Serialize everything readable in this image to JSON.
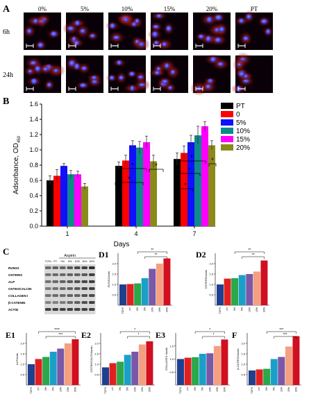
{
  "panel_a": {
    "letter": "A",
    "columns": [
      "0%",
      "5%",
      "10%",
      "15%",
      "20%",
      "PT"
    ],
    "rows": [
      "6h",
      "24h"
    ]
  },
  "chart_data": [
    {
      "id": "B",
      "type": "bar",
      "letter": "B",
      "categories": [
        "1",
        "4",
        "7"
      ],
      "xlabel": "Days",
      "ylabel": "Adsorbance, OD",
      "ylabel_sub": "450",
      "ylim": [
        0,
        1.6
      ],
      "yticks": [
        "0.0",
        "0.2",
        "0.4",
        "0.6",
        "0.8",
        "1.0",
        "1.2",
        "1.4",
        "1.6"
      ],
      "legend_position": "top-right",
      "grid": false,
      "sig_mark": "*",
      "series": [
        {
          "name": "PT",
          "color": "#000000",
          "values": [
            0.6,
            0.79,
            0.88
          ],
          "errors": [
            0.06,
            0.05,
            0.08
          ]
        },
        {
          "name": "0",
          "color": "#ff0000",
          "values": [
            0.66,
            0.86,
            0.96
          ],
          "errors": [
            0.08,
            0.07,
            0.09
          ]
        },
        {
          "name": "5%",
          "color": "#1010ff",
          "values": [
            0.79,
            1.06,
            1.1
          ],
          "errors": [
            0.03,
            0.06,
            0.09
          ]
        },
        {
          "name": "10%",
          "color": "#0e8a8a",
          "values": [
            0.68,
            1.03,
            1.19
          ],
          "errors": [
            0.05,
            0.08,
            0.12
          ]
        },
        {
          "name": "15%",
          "color": "#ff00ff",
          "values": [
            0.68,
            1.1,
            1.31
          ],
          "errors": [
            0.04,
            0.08,
            0.06
          ]
        },
        {
          "name": "20%",
          "color": "#8a8a1a",
          "values": [
            0.52,
            0.85,
            1.06
          ],
          "errors": [
            0.04,
            0.08,
            0.06
          ]
        }
      ]
    },
    {
      "id": "D1",
      "type": "bar",
      "letter": "D1",
      "ylabel": "RUNX2/actin",
      "categories": [
        "TCPS",
        "PT",
        "0%",
        "5%",
        "10%",
        "15%",
        "20%"
      ],
      "values": [
        1.0,
        1.02,
        1.05,
        1.3,
        1.75,
        2.0,
        2.25
      ],
      "ylim": [
        0,
        2.5
      ],
      "yticks": [
        "0.5",
        "1.0",
        "1.5",
        "2.0"
      ],
      "brackets": [
        {
          "label": "**",
          "from": 2,
          "to": 6
        },
        {
          "label": "**",
          "from": 3,
          "to": 6
        }
      ]
    },
    {
      "id": "D2",
      "type": "bar",
      "letter": "D2",
      "ylabel": "OSTERIX/actin",
      "categories": [
        "TCPS",
        "PT",
        "0%",
        "5%",
        "10%",
        "15%",
        "20%"
      ],
      "values": [
        1.0,
        1.28,
        1.3,
        1.45,
        1.5,
        1.62,
        2.15
      ],
      "ylim": [
        0,
        2.5
      ],
      "yticks": [
        "0.5",
        "1.0",
        "1.5",
        "2.0"
      ],
      "brackets": [
        {
          "label": "**",
          "from": 2,
          "to": 6
        },
        {
          "label": "**",
          "from": 3,
          "to": 6
        }
      ]
    },
    {
      "id": "E1",
      "type": "bar",
      "letter": "E1",
      "ylabel": "ALP/actin",
      "categories": [
        "TCPS",
        "PT",
        "0%",
        "5%",
        "10%",
        "15%",
        "20%"
      ],
      "values": [
        1.0,
        1.25,
        1.35,
        1.6,
        1.75,
        2.0,
        2.2
      ],
      "ylim": [
        0,
        2.5
      ],
      "yticks": [
        "0.5",
        "1.0",
        "1.5",
        "2.0"
      ],
      "brackets": [
        {
          "label": "****",
          "from": 1,
          "to": 6
        },
        {
          "label": "***",
          "from": 2,
          "to": 6
        }
      ]
    },
    {
      "id": "E2",
      "type": "bar",
      "letter": "E2",
      "ylabel": "OSTEOCALCIN/actin",
      "categories": [
        "TCPS",
        "PT",
        "0%",
        "5%",
        "10%",
        "15%",
        "20%"
      ],
      "values": [
        0.85,
        1.05,
        1.12,
        1.45,
        1.6,
        1.95,
        2.1
      ],
      "ylim": [
        0,
        2.5
      ],
      "yticks": [
        "0.5",
        "1.0",
        "1.5",
        "2.0"
      ],
      "brackets": [
        {
          "label": "*",
          "from": 2,
          "to": 6
        },
        {
          "label": "*",
          "from": 3,
          "to": 6
        }
      ]
    },
    {
      "id": "E3",
      "type": "bar",
      "letter": "E3",
      "ylabel": "COLLAGEN I/actin",
      "categories": [
        "TCPS",
        "PT",
        "0%",
        "5%",
        "10%",
        "15%",
        "20%"
      ],
      "values": [
        1.0,
        1.05,
        1.07,
        1.2,
        1.22,
        1.5,
        1.75
      ],
      "ylim": [
        0,
        2.0
      ],
      "yticks": [
        "0.5",
        "1.0",
        "1.5"
      ],
      "brackets": [
        {
          "label": "*",
          "from": 2,
          "to": 6
        },
        {
          "label": "*",
          "from": 3,
          "to": 6
        }
      ]
    },
    {
      "id": "F",
      "type": "bar",
      "letter": "F",
      "ylabel": "β-CATENIN/actin",
      "categories": [
        "TCPS",
        "PT",
        "0%",
        "5%",
        "10%",
        "15%",
        "20%"
      ],
      "values": [
        0.7,
        0.75,
        0.78,
        1.25,
        1.35,
        1.85,
        2.35
      ],
      "ylim": [
        0,
        2.5
      ],
      "yticks": [
        "0.5",
        "1.0",
        "1.5",
        "2.0"
      ],
      "brackets": [
        {
          "label": "***",
          "from": 2,
          "to": 6
        },
        {
          "label": "***",
          "from": 3,
          "to": 6
        }
      ]
    }
  ],
  "small_bar_colors": [
    "#1f3f8f",
    "#e02020",
    "#2aa84a",
    "#1aa0c8",
    "#7b57a8",
    "#f4a080",
    "#d01020"
  ],
  "panel_c": {
    "letter": "C",
    "header": "Aspirin",
    "lanes": [
      "TCPs",
      "PT",
      "0%",
      "5%",
      "10%",
      "15%",
      "20%"
    ],
    "labels": [
      "RUNX2",
      "OSTERIX",
      "ALP",
      "OSTEOCALCIN",
      "COLLAGEN I",
      "β-CATENIN",
      "ACTIN"
    ],
    "band_intensity": [
      [
        0.55,
        0.6,
        0.6,
        0.65,
        0.75,
        0.8,
        0.9
      ],
      [
        0.5,
        0.55,
        0.55,
        0.6,
        0.6,
        0.65,
        0.8
      ],
      [
        0.5,
        0.55,
        0.6,
        0.65,
        0.7,
        0.75,
        0.8
      ],
      [
        0.45,
        0.5,
        0.55,
        0.6,
        0.65,
        0.75,
        0.8
      ],
      [
        0.5,
        0.55,
        0.55,
        0.6,
        0.6,
        0.7,
        0.75
      ],
      [
        0.4,
        0.42,
        0.45,
        0.55,
        0.6,
        0.7,
        0.8
      ],
      [
        0.8,
        0.8,
        0.8,
        0.8,
        0.8,
        0.8,
        0.8
      ]
    ]
  }
}
